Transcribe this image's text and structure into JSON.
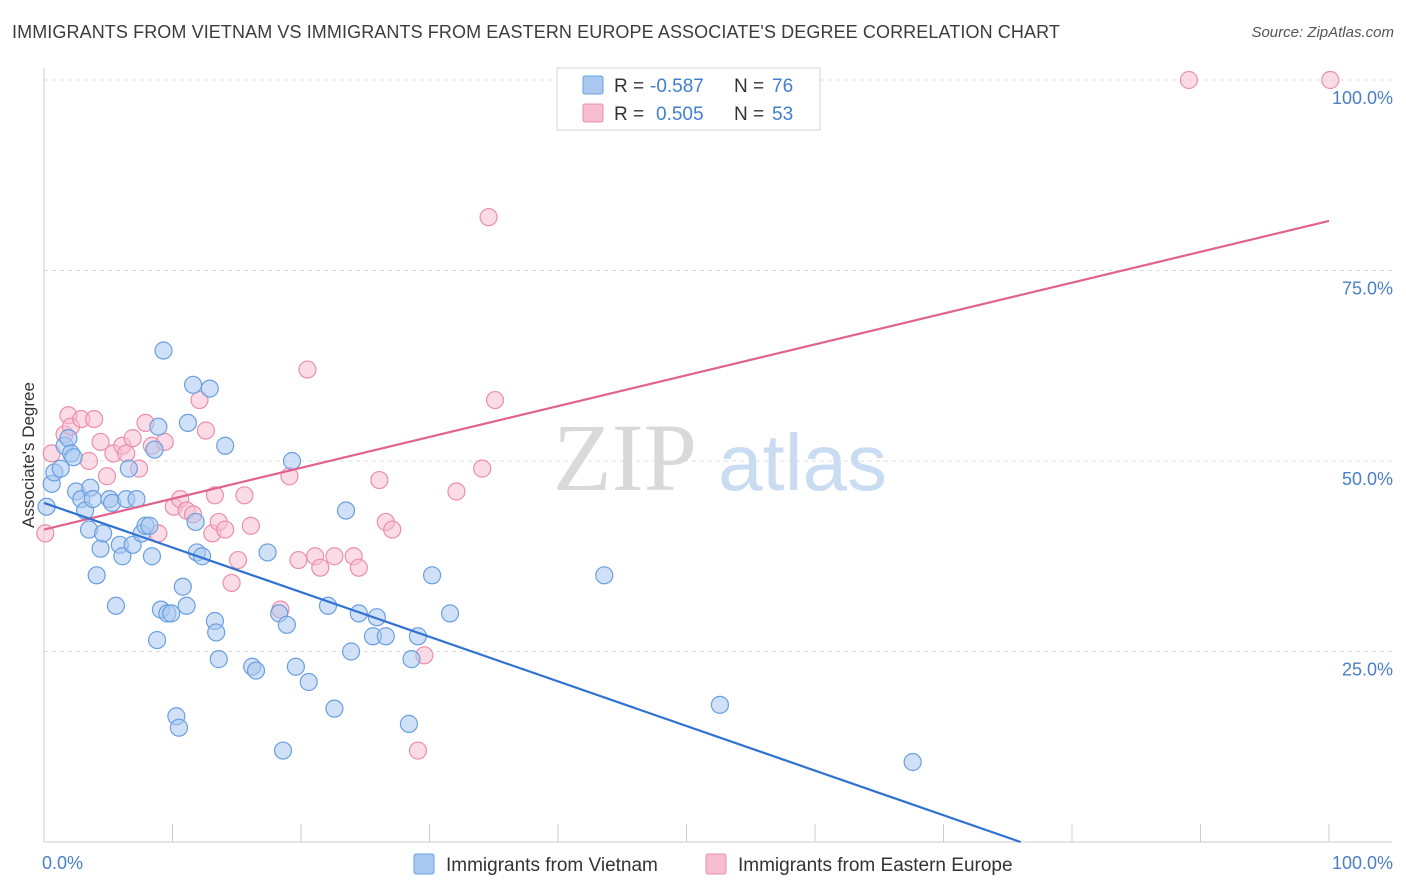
{
  "header": {
    "title": "IMMIGRANTS FROM VIETNAM VS IMMIGRANTS FROM EASTERN EUROPE ASSOCIATE'S DEGREE CORRELATION CHART",
    "source": "Source: ZipAtlas.com"
  },
  "watermark": {
    "zip": "ZIP",
    "atlas": "atlas"
  },
  "colors": {
    "vietnam_fill": "#a9c8f0",
    "vietnam_stroke": "#6a9fe0",
    "vietnam_line": "#2f72d2",
    "ee_fill": "#f7bdd0",
    "ee_stroke": "#ea8fac",
    "ee_line": "#e0628f",
    "grid": "#dddddd",
    "tick_label": "#4a7fc8"
  },
  "legend": {
    "r_label": "R =",
    "n_label": "N =",
    "rows": [
      {
        "r": "-0.587",
        "n": "76"
      },
      {
        "r": "0.505",
        "n": "53"
      }
    ]
  },
  "chart_data": {
    "type": "scatter",
    "title": "IMMIGRANTS FROM VIETNAM VS IMMIGRANTS FROM EASTERN EUROPE ASSOCIATE'S DEGREE CORRELATION CHART",
    "xlabel": "",
    "ylabel": "Associate's Degree",
    "xlim": [
      0,
      100
    ],
    "ylim": [
      0,
      100
    ],
    "x_tick_labels": [
      "0.0%",
      "100.0%"
    ],
    "y_ticks": [
      25,
      50,
      75,
      100
    ],
    "y_tick_labels": [
      "25.0%",
      "50.0%",
      "75.0%",
      "100.0%"
    ],
    "grid": true,
    "legend_position": "top-center",
    "series": [
      {
        "name": "Immigrants from Vietnam",
        "R": -0.587,
        "N": 76,
        "trend": {
          "x": [
            0,
            76
          ],
          "y": [
            44.5,
            0
          ]
        },
        "points": [
          [
            0.2,
            44
          ],
          [
            0.6,
            47
          ],
          [
            0.8,
            48.5
          ],
          [
            1.3,
            49
          ],
          [
            1.6,
            52
          ],
          [
            1.9,
            53
          ],
          [
            2.1,
            51
          ],
          [
            2.3,
            50.5
          ],
          [
            2.5,
            46
          ],
          [
            2.9,
            45
          ],
          [
            3.2,
            43.5
          ],
          [
            3.5,
            41
          ],
          [
            3.6,
            46.5
          ],
          [
            3.8,
            45
          ],
          [
            4.1,
            35
          ],
          [
            4.4,
            38.5
          ],
          [
            4.6,
            40.5
          ],
          [
            5.1,
            45
          ],
          [
            5.3,
            44.5
          ],
          [
            5.6,
            31
          ],
          [
            5.9,
            39
          ],
          [
            6.1,
            37.5
          ],
          [
            6.4,
            45
          ],
          [
            6.6,
            49
          ],
          [
            6.9,
            39
          ],
          [
            7.2,
            45
          ],
          [
            7.6,
            40.5
          ],
          [
            7.9,
            41.5
          ],
          [
            8.2,
            41.5
          ],
          [
            8.4,
            37.5
          ],
          [
            8.6,
            51.5
          ],
          [
            8.9,
            54.5
          ],
          [
            8.8,
            26.5
          ],
          [
            9.1,
            30.5
          ],
          [
            9.3,
            64.5
          ],
          [
            9.6,
            30
          ],
          [
            9.9,
            30
          ],
          [
            10.3,
            16.5
          ],
          [
            10.5,
            15
          ],
          [
            10.8,
            33.5
          ],
          [
            11.2,
            55
          ],
          [
            11.1,
            31
          ],
          [
            11.6,
            60
          ],
          [
            11.8,
            42
          ],
          [
            11.9,
            38
          ],
          [
            12.3,
            37.5
          ],
          [
            12.9,
            59.5
          ],
          [
            13.3,
            29
          ],
          [
            13.4,
            27.5
          ],
          [
            13.6,
            24
          ],
          [
            14.1,
            52
          ],
          [
            16.2,
            23
          ],
          [
            16.5,
            22.5
          ],
          [
            17.4,
            38
          ],
          [
            18.3,
            30
          ],
          [
            18.6,
            12
          ],
          [
            18.9,
            28.5
          ],
          [
            19.3,
            50
          ],
          [
            19.6,
            23
          ],
          [
            20.6,
            21
          ],
          [
            22.1,
            31
          ],
          [
            22.6,
            17.5
          ],
          [
            23.5,
            43.5
          ],
          [
            23.9,
            25
          ],
          [
            25.6,
            27
          ],
          [
            25.9,
            29.5
          ],
          [
            26.6,
            27
          ],
          [
            28.4,
            15.5
          ],
          [
            28.6,
            24
          ],
          [
            29.1,
            27
          ],
          [
            30.2,
            35
          ],
          [
            31.6,
            30
          ],
          [
            43.6,
            35
          ],
          [
            52.6,
            18
          ],
          [
            67.6,
            10.5
          ],
          [
            24.5,
            30
          ]
        ]
      },
      {
        "name": "Immigrants from Eastern Europe",
        "R": 0.505,
        "N": 53,
        "trend": {
          "x": [
            0,
            100
          ],
          "y": [
            41,
            81.5
          ]
        },
        "points": [
          [
            0.1,
            40.5
          ],
          [
            0.6,
            51
          ],
          [
            1.6,
            53.5
          ],
          [
            1.9,
            56
          ],
          [
            2.1,
            54.5
          ],
          [
            2.9,
            55.5
          ],
          [
            3.5,
            50
          ],
          [
            3.9,
            55.5
          ],
          [
            4.4,
            52.5
          ],
          [
            4.9,
            48
          ],
          [
            5.4,
            51
          ],
          [
            6.1,
            52
          ],
          [
            6.4,
            51
          ],
          [
            6.9,
            53
          ],
          [
            7.4,
            49
          ],
          [
            7.9,
            55
          ],
          [
            8.4,
            52
          ],
          [
            8.9,
            40.5
          ],
          [
            9.4,
            52.5
          ],
          [
            10.1,
            44
          ],
          [
            10.6,
            45
          ],
          [
            11.1,
            43.5
          ],
          [
            11.6,
            43
          ],
          [
            12.1,
            58
          ],
          [
            12.6,
            54
          ],
          [
            13.1,
            40.5
          ],
          [
            13.3,
            45.5
          ],
          [
            13.6,
            42
          ],
          [
            14.1,
            41
          ],
          [
            14.6,
            34
          ],
          [
            15.1,
            37
          ],
          [
            15.6,
            45.5
          ],
          [
            16.1,
            41.5
          ],
          [
            18.4,
            30.5
          ],
          [
            19.1,
            48
          ],
          [
            19.8,
            37
          ],
          [
            20.5,
            62
          ],
          [
            21.1,
            37.5
          ],
          [
            21.5,
            36
          ],
          [
            22.6,
            37.5
          ],
          [
            24.1,
            37.5
          ],
          [
            24.5,
            36
          ],
          [
            26.1,
            47.5
          ],
          [
            26.6,
            42
          ],
          [
            27.1,
            41
          ],
          [
            29.1,
            12
          ],
          [
            29.6,
            24.5
          ],
          [
            32.1,
            46
          ],
          [
            34.1,
            49
          ],
          [
            34.6,
            82
          ],
          [
            35.1,
            58
          ],
          [
            89.1,
            100
          ],
          [
            100.1,
            100
          ]
        ]
      }
    ]
  }
}
